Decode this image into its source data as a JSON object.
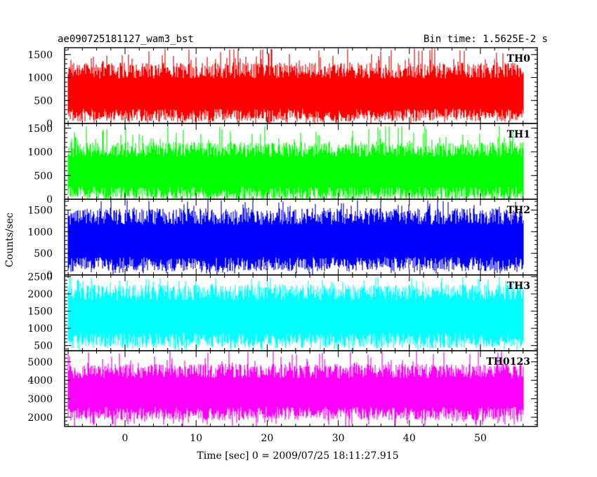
{
  "chart_data": {
    "type": "line",
    "title": "ae090725181127_wam3_bst",
    "subtitle": "Bin time: 1.5625E-2 s",
    "xlabel": "Time [sec] 0 = 2009/07/25 18:11:27.915",
    "ylabel": "Counts/sec",
    "xlim": [
      -8.5,
      58
    ],
    "x_ticks": [
      0,
      10,
      20,
      30,
      40,
      50
    ],
    "data_x_range": [
      -8,
      56
    ],
    "bin_time": 0.015625,
    "panels": [
      {
        "name": "TH0",
        "color": "#ff0000",
        "ylim": [
          0,
          1650
        ],
        "y_ticks": [
          0,
          500,
          1000,
          1500
        ],
        "y_tick_labels": [
          "0",
          "500",
          "1000",
          "1500"
        ],
        "typical_low": 180,
        "typical_high": 1150,
        "spike_min": 0,
        "spike_max": 1650,
        "center": 650
      },
      {
        "name": "TH1",
        "color": "#00ff00",
        "ylim": [
          0,
          1600
        ],
        "y_ticks": [
          0,
          500,
          1000,
          1500
        ],
        "y_tick_labels": [
          "0",
          "500",
          "1000",
          "1500"
        ],
        "typical_low": 120,
        "typical_high": 1050,
        "spike_min": 0,
        "spike_max": 1550,
        "center": 600
      },
      {
        "name": "TH2",
        "color": "#0000ff",
        "ylim": [
          0,
          1750
        ],
        "y_ticks": [
          0,
          500,
          1000,
          1500
        ],
        "y_tick_labels": [
          "0",
          "500",
          "1000",
          "1500"
        ],
        "typical_low": 250,
        "typical_high": 1350,
        "spike_min": 0,
        "spike_max": 1750,
        "center": 800
      },
      {
        "name": "TH3",
        "color": "#00ffff",
        "ylim": [
          350,
          2550
        ],
        "y_ticks": [
          500,
          1000,
          1500,
          2000,
          2500
        ],
        "y_tick_labels": [
          "500",
          "1000",
          "1500",
          "2000",
          "2500"
        ],
        "typical_low": 650,
        "typical_high": 2050,
        "spike_min": 350,
        "spike_max": 2500,
        "center": 1400
      },
      {
        "name": "TH0123",
        "color": "#ff00ff",
        "ylim": [
          1500,
          5600
        ],
        "y_ticks": [
          2000,
          3000,
          4000,
          5000
        ],
        "y_tick_labels": [
          "2000",
          "3000",
          "4000",
          "5000"
        ],
        "typical_low": 2200,
        "typical_high": 4500,
        "spike_min": 1500,
        "spike_max": 5600,
        "center": 3400
      }
    ]
  }
}
